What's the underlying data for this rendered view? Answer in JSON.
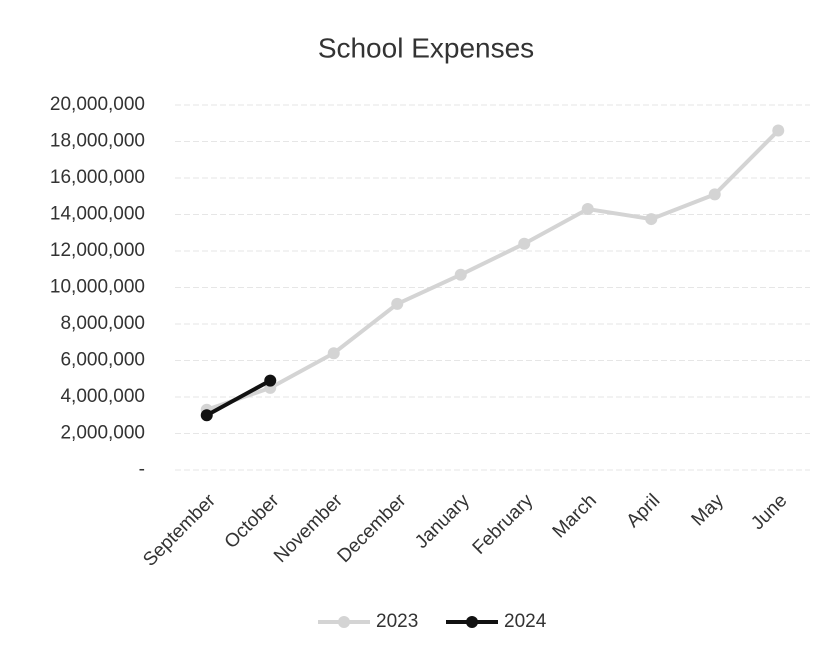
{
  "chart_data": {
    "type": "line",
    "title": "School Expenses",
    "categories": [
      "September",
      "October",
      "November",
      "December",
      "January",
      "February",
      "March",
      "April",
      "May",
      "June"
    ],
    "series": [
      {
        "name": "2023",
        "color": "#d4d4d4",
        "values": [
          3300000,
          4500000,
          6400000,
          9100000,
          10700000,
          12400000,
          14300000,
          13750000,
          15100000,
          18600000
        ]
      },
      {
        "name": "2024",
        "color": "#111111",
        "values": [
          3000000,
          4900000,
          null,
          null,
          null,
          null,
          null,
          null,
          null,
          null
        ]
      }
    ],
    "ylim": [
      0,
      20000000
    ],
    "yticks": [
      {
        "value": 0,
        "label": "-"
      },
      {
        "value": 2000000,
        "label": "2,000,000"
      },
      {
        "value": 4000000,
        "label": "4,000,000"
      },
      {
        "value": 6000000,
        "label": "6,000,000"
      },
      {
        "value": 8000000,
        "label": "8,000,000"
      },
      {
        "value": 10000000,
        "label": "10,000,000"
      },
      {
        "value": 12000000,
        "label": "12,000,000"
      },
      {
        "value": 14000000,
        "label": "14,000,000"
      },
      {
        "value": 16000000,
        "label": "16,000,000"
      },
      {
        "value": 18000000,
        "label": "18,000,000"
      },
      {
        "value": 20000000,
        "label": "20,000,000"
      }
    ],
    "grid": true,
    "legend": "bottom"
  }
}
